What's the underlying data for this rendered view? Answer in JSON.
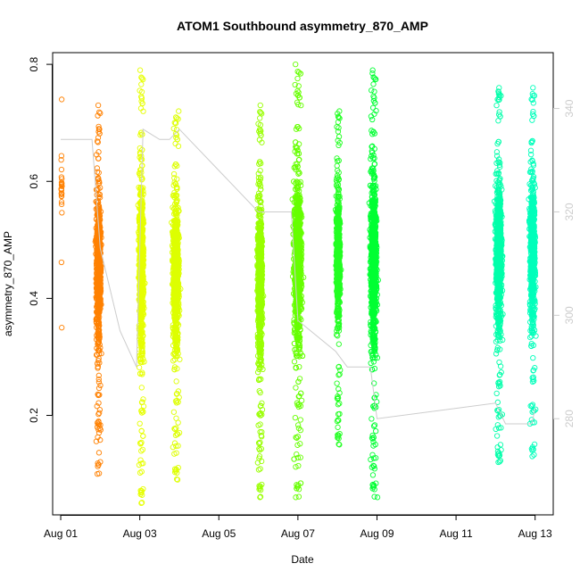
{
  "chart_data": {
    "type": "scatter",
    "title": "ATOM1 Southbound asymmetry_870_AMP",
    "xlabel": "Date",
    "ylabel": "asymmetry_870_AMP",
    "x_ticks": [
      "Aug 01",
      "Aug 03",
      "Aug 05",
      "Aug 07",
      "Aug 09",
      "Aug 11",
      "Aug 13"
    ],
    "xlim": [
      "2023-07-31T19:06",
      "2023-08-13T11:00"
    ],
    "ylim": [
      0.03,
      0.82
    ],
    "y_ticks": [
      "0.2",
      "0.4",
      "0.6",
      "0.8"
    ],
    "y2_ticks": [
      "280",
      "300",
      "320",
      "340"
    ],
    "y2lim": [
      261.4,
      350.8
    ],
    "grid": false,
    "marker": "open-circle",
    "series": [
      {
        "color": "#FF8000",
        "x_range": [
          "2023-08-01T00:00",
          "2023-08-01T01:00"
        ],
        "y_range": [
          0.35,
          0.74
        ],
        "n": 25
      },
      {
        "color": "#FF8000",
        "x_range": [
          "2023-08-01T20:00",
          "2023-08-02T02:00"
        ],
        "y_range": [
          0.1,
          0.73
        ],
        "n": 900
      },
      {
        "color": "#E6FF00",
        "x_range": [
          "2023-08-02T22:00",
          "2023-08-03T04:00"
        ],
        "y_range": [
          0.05,
          0.79
        ],
        "n": 900
      },
      {
        "color": "#DDFF00",
        "x_range": [
          "2023-08-03T18:00",
          "2023-08-04T02:00"
        ],
        "y_range": [
          0.09,
          0.72
        ],
        "n": 900
      },
      {
        "color": "#99FF00",
        "x_range": [
          "2023-08-05T22:00",
          "2023-08-06T04:00"
        ],
        "y_range": [
          0.06,
          0.73
        ],
        "n": 900
      },
      {
        "color": "#66FF00",
        "x_range": [
          "2023-08-06T19:00",
          "2023-08-07T05:00"
        ],
        "y_range": [
          0.06,
          0.8
        ],
        "n": 1100
      },
      {
        "color": "#22FF22",
        "x_range": [
          "2023-08-07T22:00",
          "2023-08-08T03:00"
        ],
        "y_range": [
          0.15,
          0.72
        ],
        "n": 700
      },
      {
        "color": "#00FF33",
        "x_range": [
          "2023-08-08T18:00",
          "2023-08-09T02:00"
        ],
        "y_range": [
          0.06,
          0.79
        ],
        "n": 1000
      },
      {
        "color": "#00FFAA",
        "x_range": [
          "2023-08-11T22:00",
          "2023-08-12T06:00"
        ],
        "y_range": [
          0.12,
          0.76
        ],
        "n": 900
      },
      {
        "color": "#00FFBB",
        "x_range": [
          "2023-08-12T19:00",
          "2023-08-13T02:00"
        ],
        "y_range": [
          0.13,
          0.76
        ],
        "n": 700
      }
    ],
    "secondary_line": {
      "color": "#cccccc",
      "x": [
        "2023-08-01T00:00",
        "2023-08-01T08:00",
        "2023-08-01T19:00",
        "2023-08-02T00:00",
        "2023-08-02T12:00",
        "2023-08-02T22:00",
        "2023-08-03T02:00",
        "2023-08-03T12:00",
        "2023-08-03T18:00",
        "2023-08-04T00:00",
        "2023-08-05T00:00",
        "2023-08-06T00:00",
        "2023-08-06T05:00",
        "2023-08-06T20:00",
        "2023-08-07T00:00",
        "2023-08-07T23:00",
        "2023-08-08T06:00",
        "2023-08-08T20:00",
        "2023-08-09T00:00",
        "2023-08-12T00:00",
        "2023-08-12T06:00",
        "2023-08-12T22:00",
        "2023-08-13T00:00"
      ],
      "y": [
        334.0,
        334.0,
        334.0,
        313.0,
        297.0,
        290.0,
        336.0,
        334.0,
        334.0,
        336.0,
        328.0,
        320.0,
        320.0,
        320.0,
        299.0,
        293.0,
        290.0,
        290.0,
        280.0,
        283.0,
        279.0,
        279.0,
        282.0
      ]
    }
  }
}
